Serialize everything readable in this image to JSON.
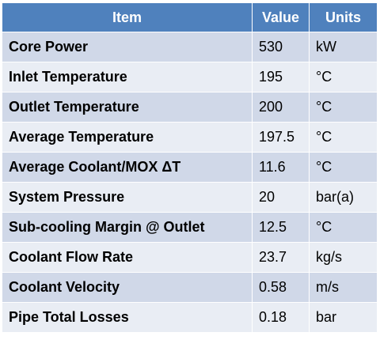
{
  "table": {
    "header": [
      "Item",
      "Value",
      "Units"
    ],
    "rows": [
      [
        "Core Power",
        "530",
        "kW"
      ],
      [
        "Inlet Temperature",
        "195",
        "°C"
      ],
      [
        "Outlet Temperature",
        "200",
        "°C"
      ],
      [
        "Average Temperature",
        "197.5",
        "°C"
      ],
      [
        "Average Coolant/MOX ΔT",
        "11.6",
        "°C"
      ],
      [
        "System Pressure",
        "20",
        "bar(a)"
      ],
      [
        "Sub-cooling Margin @ Outlet",
        "12.5",
        "°C"
      ],
      [
        "Coolant Flow Rate",
        "23.7",
        "kg/s"
      ],
      [
        "Coolant Velocity",
        "0.58",
        "m/s"
      ],
      [
        "Pipe Total Losses",
        "0.18",
        "bar"
      ]
    ]
  }
}
